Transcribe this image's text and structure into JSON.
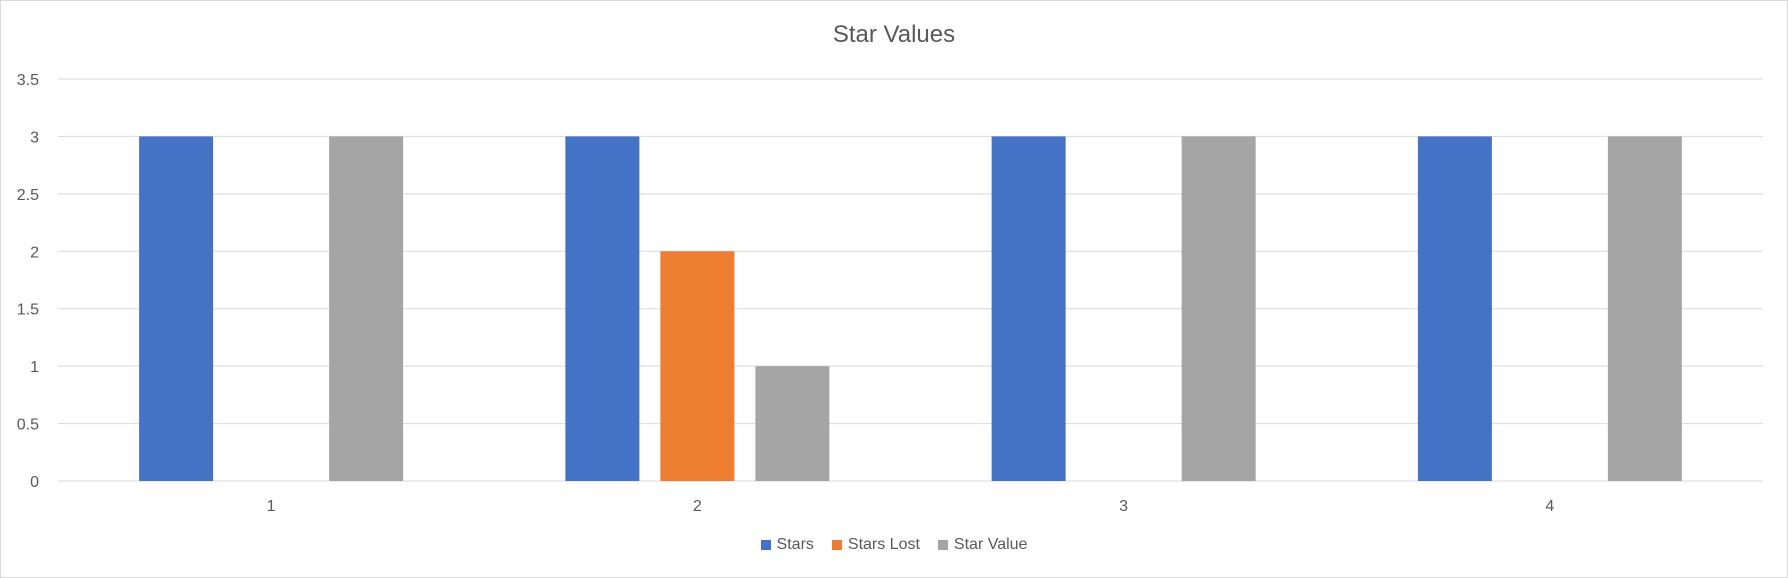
{
  "chart_data": {
    "type": "bar",
    "title": "Star Values",
    "xlabel": "",
    "ylabel": "",
    "categories": [
      "1",
      "2",
      "3",
      "4"
    ],
    "series": [
      {
        "name": "Stars",
        "color": "#4472C4",
        "values": [
          3,
          3,
          3,
          3
        ]
      },
      {
        "name": "Stars Lost",
        "color": "#ED7D31",
        "values": [
          0,
          2,
          0,
          0
        ]
      },
      {
        "name": "Star Value",
        "color": "#A5A5A5",
        "values": [
          3,
          1,
          3,
          3
        ]
      }
    ],
    "ylim": [
      0,
      3.5
    ],
    "yticks": [
      "0",
      "0.5",
      "1",
      "1.5",
      "2",
      "2.5",
      "3",
      "3.5"
    ],
    "grid": true,
    "legend_position": "bottom"
  }
}
